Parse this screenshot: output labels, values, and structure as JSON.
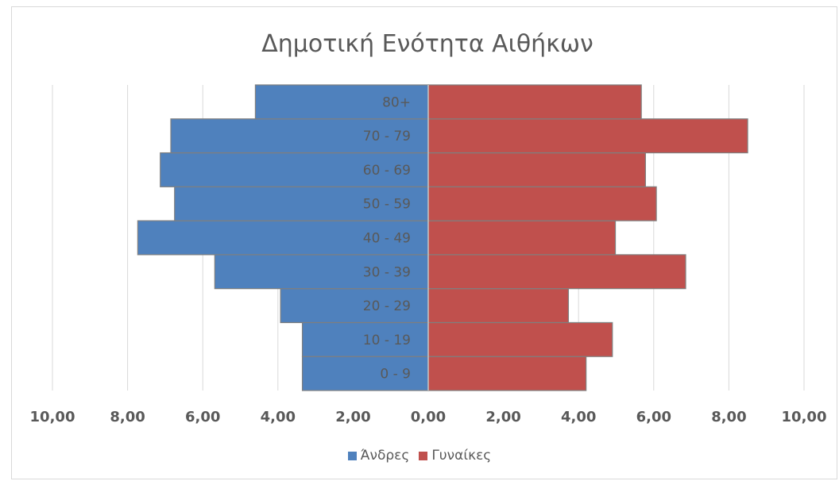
{
  "chart_data": {
    "type": "bar",
    "orientation": "horizontal",
    "title": "Δημοτική Ενότητα Αιθήκων",
    "categories": [
      "0 - 9",
      "10 - 19",
      "20 - 29",
      "30 - 39",
      "40 - 49",
      "50 - 59",
      "60 - 69",
      "70 - 79",
      "80+"
    ],
    "series": [
      {
        "name": "Άνδρες",
        "color": "#4f81bd",
        "side": "left",
        "values": [
          3.35,
          3.35,
          3.93,
          5.68,
          7.73,
          6.75,
          7.13,
          6.85,
          4.6
        ]
      },
      {
        "name": "Γυναίκες",
        "color": "#c0504d",
        "side": "right",
        "values": [
          4.2,
          4.9,
          3.73,
          6.85,
          4.98,
          6.07,
          5.78,
          8.5,
          5.67
        ]
      }
    ],
    "xlim": [
      -10,
      10
    ],
    "x_ticks": [
      "10,00",
      "8,00",
      "6,00",
      "4,00",
      "2,00",
      "0,00",
      "2,00",
      "4,00",
      "6,00",
      "8,00",
      "10,00"
    ],
    "grid": "vertical",
    "legend_position": "bottom"
  }
}
